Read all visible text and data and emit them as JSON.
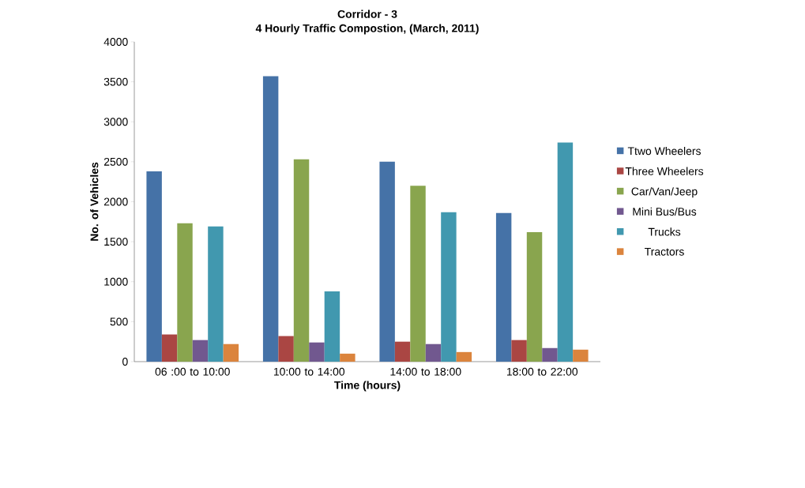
{
  "chart_data": {
    "type": "bar",
    "title": "Corridor - 3",
    "subtitle": "4 Hourly Traffic Compostion, (March, 2011)",
    "xlabel": "Time  (hours)",
    "ylabel": "No. of Vehicles",
    "categories": [
      "06 :00 to 10:00",
      "10:00 to 14:00",
      "14:00 to 18:00",
      "18:00 to 22:00"
    ],
    "series": [
      {
        "name": "Ttwo Wheelers",
        "color": "#4572a7",
        "values": [
          2380,
          3570,
          2500,
          1860
        ]
      },
      {
        "name": "Three Wheelers",
        "color": "#aa4643",
        "values": [
          340,
          320,
          250,
          270
        ]
      },
      {
        "name": "Car/Van/Jeep",
        "color": "#89a54e",
        "values": [
          1730,
          2530,
          2200,
          1620
        ]
      },
      {
        "name": "Mini Bus/Bus",
        "color": "#71588f",
        "values": [
          270,
          240,
          220,
          170
        ]
      },
      {
        "name": "Trucks",
        "color": "#4198af",
        "values": [
          1690,
          880,
          1870,
          2740
        ]
      },
      {
        "name": "Tractors",
        "color": "#db843d",
        "values": [
          220,
          100,
          120,
          150
        ]
      }
    ],
    "ylim": [
      0,
      4000
    ],
    "yticks": [
      0,
      500,
      1000,
      1500,
      2000,
      2500,
      3000,
      3500,
      4000
    ],
    "grid": false,
    "legend": "right"
  }
}
